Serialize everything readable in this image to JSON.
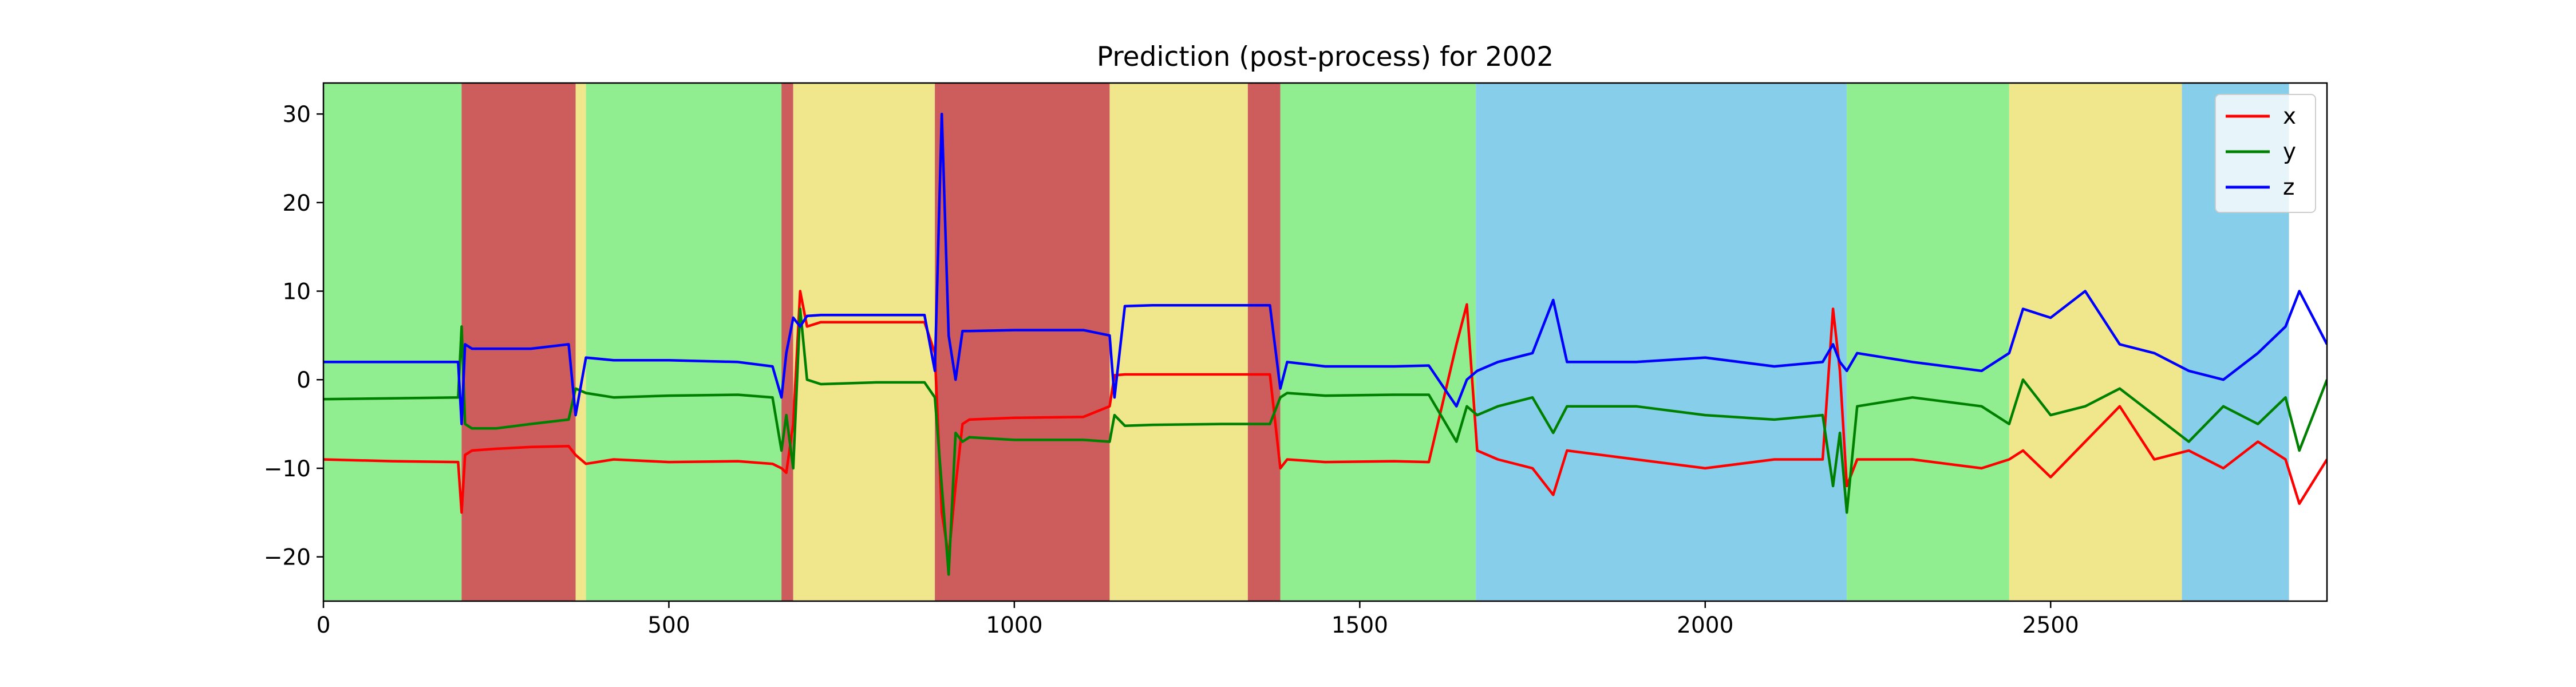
{
  "chart_data": {
    "type": "line",
    "title": "Prediction (post-process) for 2002",
    "xlabel": "",
    "ylabel": "",
    "xlim": [
      0,
      2900
    ],
    "ylim": [
      -25,
      33.5
    ],
    "xticks": [
      0,
      500,
      1000,
      1500,
      2000,
      2500
    ],
    "yticks": [
      -20,
      -10,
      0,
      10,
      20,
      30
    ],
    "legend_position": "top-right",
    "grid": false,
    "region_colors": {
      "green": "#90ee90",
      "red": "#cd5c5c",
      "yellow": "#f0e68c",
      "blue": "#87ceeb"
    },
    "regions": [
      {
        "start": 0,
        "end": 200,
        "class": "green"
      },
      {
        "start": 200,
        "end": 365,
        "class": "red"
      },
      {
        "start": 365,
        "end": 380,
        "class": "yellow"
      },
      {
        "start": 380,
        "end": 663,
        "class": "green"
      },
      {
        "start": 663,
        "end": 680,
        "class": "red"
      },
      {
        "start": 680,
        "end": 885,
        "class": "yellow"
      },
      {
        "start": 885,
        "end": 1138,
        "class": "red"
      },
      {
        "start": 1138,
        "end": 1338,
        "class": "yellow"
      },
      {
        "start": 1338,
        "end": 1385,
        "class": "red"
      },
      {
        "start": 1385,
        "end": 1668,
        "class": "green"
      },
      {
        "start": 1668,
        "end": 2205,
        "class": "blue"
      },
      {
        "start": 2205,
        "end": 2440,
        "class": "green"
      },
      {
        "start": 2440,
        "end": 2690,
        "class": "yellow"
      },
      {
        "start": 2690,
        "end": 2845,
        "class": "blue"
      }
    ],
    "series": [
      {
        "name": "x",
        "color": "#ff0000",
        "x": [
          0,
          100,
          195,
          200,
          205,
          215,
          250,
          300,
          355,
          365,
          380,
          420,
          500,
          600,
          650,
          663,
          670,
          680,
          690,
          700,
          720,
          800,
          870,
          885,
          895,
          905,
          915,
          925,
          935,
          1000,
          1100,
          1138,
          1145,
          1160,
          1200,
          1300,
          1370,
          1385,
          1395,
          1450,
          1550,
          1600,
          1640,
          1655,
          1670,
          1700,
          1750,
          1780,
          1800,
          1900,
          2000,
          2100,
          2170,
          2185,
          2195,
          2205,
          2220,
          2300,
          2400,
          2440,
          2460,
          2500,
          2550,
          2600,
          2650,
          2700,
          2750,
          2800,
          2840,
          2860,
          2900
        ],
        "y": [
          -9,
          -9.2,
          -9.3,
          -15,
          -8.5,
          -8,
          -7.8,
          -7.6,
          -7.5,
          -8.5,
          -9.5,
          -9,
          -9.3,
          -9.2,
          -9.5,
          -10,
          -10.5,
          -5,
          10,
          6,
          6.5,
          6.5,
          6.5,
          3,
          -15,
          -20,
          -12,
          -5,
          -4.5,
          -4.3,
          -4.2,
          -3,
          0.5,
          0.6,
          0.6,
          0.6,
          0.6,
          -10,
          -9,
          -9.3,
          -9.2,
          -9.3,
          4,
          8.5,
          -8,
          -9,
          -10,
          -13,
          -8,
          -9,
          -10,
          -9,
          -9,
          8,
          1,
          -12,
          -9,
          -9,
          -10,
          -9,
          -8,
          -11,
          -7,
          -3,
          -9,
          -8,
          -10,
          -7,
          -9,
          -14,
          -9
        ]
      },
      {
        "name": "y",
        "color": "#008000",
        "x": [
          0,
          100,
          195,
          200,
          205,
          215,
          250,
          300,
          355,
          365,
          380,
          420,
          500,
          600,
          650,
          663,
          670,
          680,
          690,
          700,
          720,
          800,
          870,
          885,
          895,
          905,
          915,
          925,
          935,
          1000,
          1100,
          1138,
          1145,
          1160,
          1200,
          1300,
          1370,
          1385,
          1395,
          1450,
          1550,
          1600,
          1640,
          1655,
          1670,
          1700,
          1750,
          1780,
          1800,
          1900,
          2000,
          2100,
          2170,
          2185,
          2195,
          2205,
          2220,
          2300,
          2400,
          2440,
          2460,
          2500,
          2550,
          2600,
          2650,
          2700,
          2750,
          2800,
          2840,
          2860,
          2900
        ],
        "y": [
          -2.2,
          -2.1,
          -2,
          6,
          -5,
          -5.5,
          -5.5,
          -5,
          -4.5,
          -1,
          -1.5,
          -2,
          -1.8,
          -1.7,
          -2,
          -8,
          -4,
          -10,
          8,
          0,
          -0.5,
          -0.3,
          -0.3,
          -2,
          -12,
          -22,
          -6,
          -7,
          -6.5,
          -6.8,
          -6.8,
          -7,
          -4,
          -5.2,
          -5.1,
          -5,
          -5,
          -2,
          -1.5,
          -1.8,
          -1.7,
          -1.7,
          -7,
          -3,
          -4,
          -3,
          -2,
          -6,
          -3,
          -3,
          -4,
          -4.5,
          -4,
          -12,
          -6,
          -15,
          -3,
          -2,
          -3,
          -5,
          0,
          -4,
          -3,
          -1,
          -4,
          -7,
          -3,
          -5,
          -2,
          -8,
          0
        ]
      },
      {
        "name": "z",
        "color": "#0000ff",
        "x": [
          0,
          100,
          195,
          200,
          205,
          215,
          250,
          300,
          355,
          365,
          380,
          420,
          500,
          600,
          650,
          663,
          670,
          680,
          690,
          700,
          720,
          800,
          870,
          885,
          895,
          905,
          915,
          925,
          935,
          1000,
          1100,
          1138,
          1145,
          1160,
          1200,
          1300,
          1370,
          1385,
          1395,
          1450,
          1550,
          1600,
          1640,
          1655,
          1670,
          1700,
          1750,
          1780,
          1800,
          1900,
          2000,
          2100,
          2170,
          2185,
          2195,
          2205,
          2220,
          2300,
          2400,
          2440,
          2460,
          2500,
          2550,
          2600,
          2650,
          2700,
          2750,
          2800,
          2840,
          2860,
          2900
        ],
        "y": [
          2,
          2,
          2,
          -5,
          4,
          3.5,
          3.5,
          3.5,
          4,
          -4,
          2.5,
          2.2,
          2.2,
          2,
          1.5,
          -2,
          3,
          7,
          6,
          7.2,
          7.3,
          7.3,
          7.3,
          1,
          30,
          5,
          0,
          5.5,
          5.5,
          5.6,
          5.6,
          5,
          -2,
          8.3,
          8.4,
          8.4,
          8.4,
          -1,
          2,
          1.5,
          1.5,
          1.6,
          -3,
          0,
          1,
          2,
          3,
          9,
          2,
          2,
          2.5,
          1.5,
          2,
          4,
          2,
          1,
          3,
          2,
          1,
          3,
          8,
          7,
          10,
          4,
          3,
          1,
          0,
          3,
          6,
          10,
          4
        ]
      }
    ]
  }
}
